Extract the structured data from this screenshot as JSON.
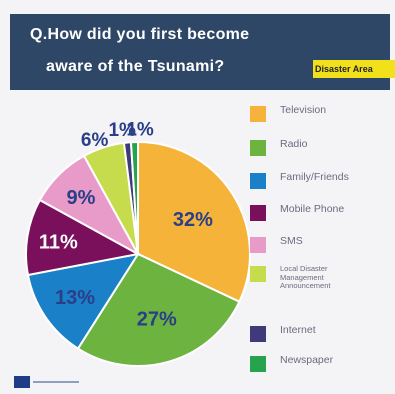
{
  "header": {
    "question_line1": "Q.How did you first become",
    "question_line2": "aware of the Tsunami?",
    "tag": "Disaster Area"
  },
  "colors": {
    "header_bg": "#2e4766",
    "tag_bg": "#f2e11a"
  },
  "chart_data": {
    "type": "pie",
    "categories": [
      "Television",
      "Radio",
      "Family/Friends",
      "Mobile Phone",
      "SMS",
      "Local Disaster Management Announcement",
      "Internet",
      "Newspaper"
    ],
    "values": [
      32,
      27,
      13,
      11,
      9,
      6,
      1,
      1
    ],
    "colors": [
      "#f6b33a",
      "#6db33f",
      "#1a80c8",
      "#7a0f5c",
      "#e89ac8",
      "#c7dc4c",
      "#3f3a78",
      "#27a24f"
    ],
    "data_labels": [
      "32%",
      "27%",
      "13%",
      "11%",
      "9%",
      "6%",
      "1%",
      "1%"
    ],
    "legend_position": "right",
    "start_angle_deg": 0,
    "direction": "clockwise"
  },
  "legend": {
    "items": [
      {
        "label": "Television",
        "color": "#f6b33a"
      },
      {
        "label": "Radio",
        "color": "#6db33f"
      },
      {
        "label": "Family/Friends",
        "color": "#1a80c8"
      },
      {
        "label": "Mobile Phone",
        "color": "#7a0f5c"
      },
      {
        "label": "SMS",
        "color": "#e89ac8"
      },
      {
        "label": "Local Disaster Management Announcement",
        "color": "#c7dc4c"
      },
      {
        "label": "Internet",
        "color": "#3f3a78"
      },
      {
        "label": "Newspaper",
        "color": "#27a24f"
      }
    ]
  }
}
